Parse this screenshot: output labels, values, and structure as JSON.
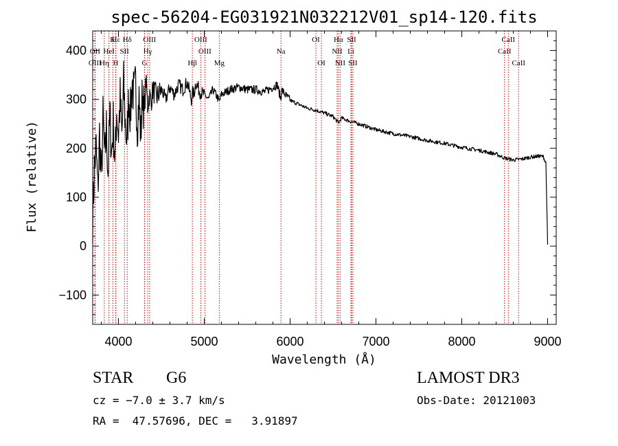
{
  "chart_data": {
    "type": "line",
    "title": "spec-56204-EG031921N032212V01_sp14-120.fits",
    "xlabel": "Wavelength (Å)",
    "ylabel": "Flux (relative)",
    "xlim": [
      3700,
      9100
    ],
    "ylim": [
      -160,
      440
    ],
    "xticks": [
      4000,
      5000,
      6000,
      7000,
      8000,
      9000
    ],
    "yticks": [
      -100,
      0,
      100,
      200,
      300,
      400
    ],
    "grid": false,
    "line_color": "#000000",
    "marker_color": "#cc0000",
    "series": [
      {
        "name": "flux",
        "x": [
          3700,
          3720,
          3740,
          3760,
          3780,
          3800,
          3820,
          3840,
          3860,
          3880,
          3900,
          3920,
          3940,
          3960,
          3980,
          4000,
          4020,
          4040,
          4060,
          4080,
          4100,
          4120,
          4140,
          4160,
          4180,
          4200,
          4220,
          4240,
          4260,
          4280,
          4300,
          4320,
          4340,
          4360,
          4380,
          4400,
          4450,
          4500,
          4550,
          4600,
          4650,
          4700,
          4750,
          4800,
          4850,
          4862,
          4880,
          4900,
          4950,
          5000,
          5050,
          5100,
          5150,
          5175,
          5200,
          5300,
          5400,
          5500,
          5600,
          5700,
          5800,
          5850,
          5893,
          5900,
          5950,
          6000,
          6100,
          6200,
          6300,
          6400,
          6500,
          6563,
          6600,
          6700,
          6800,
          6900,
          7000,
          7200,
          7400,
          7600,
          7800,
          8000,
          8200,
          8400,
          8500,
          8600,
          8700,
          8800,
          8900,
          8950,
          8980,
          9000
        ],
        "y": [
          60,
          160,
          200,
          110,
          230,
          130,
          260,
          170,
          240,
          150,
          270,
          190,
          250,
          170,
          280,
          230,
          300,
          220,
          330,
          250,
          210,
          310,
          270,
          340,
          300,
          330,
          250,
          300,
          225,
          320,
          270,
          340,
          285,
          310,
          295,
          320,
          305,
          320,
          300,
          325,
          310,
          330,
          320,
          335,
          300,
          315,
          310,
          335,
          315,
          310,
          300,
          320,
          305,
          295,
          310,
          320,
          325,
          320,
          320,
          315,
          325,
          330,
          300,
          320,
          308,
          298,
          290,
          282,
          278,
          272,
          265,
          252,
          262,
          255,
          250,
          244,
          238,
          230,
          224,
          216,
          210,
          202,
          196,
          188,
          180,
          176,
          178,
          182,
          184,
          183,
          170,
          3
        ]
      }
    ],
    "lines": [
      {
        "label": "Hε",
        "wl": 3970,
        "row": 0
      },
      {
        "label": "OII",
        "wl": 3727,
        "row": 1
      },
      {
        "label": "OIII",
        "wl": 3727,
        "row": 2
      },
      {
        "label": "Hη",
        "wl": 3835,
        "row": 2
      },
      {
        "label": "HeI",
        "wl": 3889,
        "row": 1
      },
      {
        "label": "K",
        "wl": 3934,
        "row": 0
      },
      {
        "label": "H",
        "wl": 3968,
        "row": 2
      },
      {
        "label": "SII",
        "wl": 4070,
        "row": 1
      },
      {
        "label": "Hδ",
        "wl": 4102,
        "row": 0
      },
      {
        "label": "OIII",
        "wl": 4363,
        "row": 0
      },
      {
        "label": "Hγ",
        "wl": 4341,
        "row": 1
      },
      {
        "label": "G",
        "wl": 4304,
        "row": 2
      },
      {
        "label": "OIII",
        "wl": 4959,
        "row": 0
      },
      {
        "label": "OIII",
        "wl": 5007,
        "row": 1
      },
      {
        "label": "Hβ",
        "wl": 4861,
        "row": 2
      },
      {
        "label": "Mg",
        "wl": 5175,
        "row": 2
      },
      {
        "label": "Na",
        "wl": 5893,
        "row": 1
      },
      {
        "label": "OI",
        "wl": 6300,
        "row": 0
      },
      {
        "label": "OI",
        "wl": 6364,
        "row": 2
      },
      {
        "label": "Hα",
        "wl": 6563,
        "row": 0
      },
      {
        "label": "SII",
        "wl": 6716,
        "row": 0
      },
      {
        "label": "NII",
        "wl": 6548,
        "row": 1
      },
      {
        "label": "Li",
        "wl": 6708,
        "row": 1
      },
      {
        "label": "NII",
        "wl": 6583,
        "row": 2
      },
      {
        "label": "SII",
        "wl": 6731,
        "row": 2
      },
      {
        "label": "CaII",
        "wl": 8542,
        "row": 0
      },
      {
        "label": "CaII",
        "wl": 8498,
        "row": 1
      },
      {
        "label": "CaII",
        "wl": 8662,
        "row": 2
      }
    ]
  },
  "info": {
    "object_class": "STAR",
    "subclass": "G6",
    "survey": "LAMOST DR3",
    "cz": "cz = −7.0 ± 3.7 km/s",
    "obs_date": "Obs-Date: 20121003",
    "coords": "RA =  47.57696, DEC =   3.91897"
  }
}
